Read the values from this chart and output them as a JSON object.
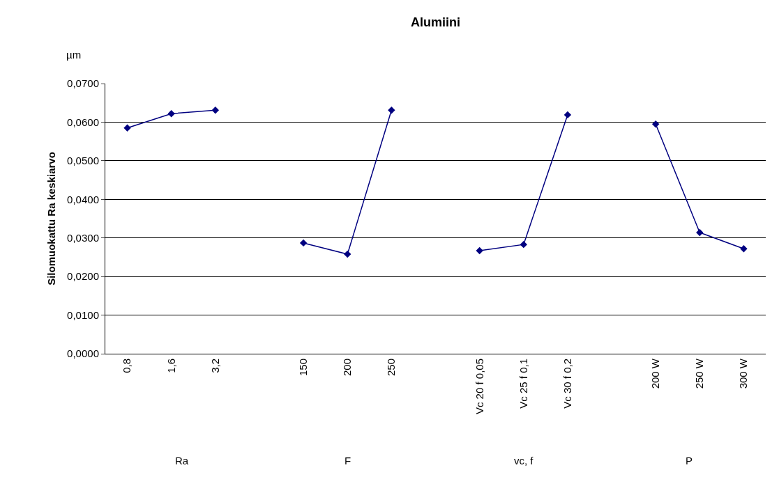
{
  "chart_data": {
    "type": "line",
    "title": "Alumiini",
    "ylabel": "Silomuokattu Ra keskiarvo",
    "categories": [
      "0,8",
      "1,6",
      "3,2",
      null,
      "150",
      "200",
      "250",
      null,
      "Vc 20 f 0,05",
      "Vc 25 f 0,1",
      "Vc 30 f 0,2",
      null,
      "200 W",
      "250 W",
      "300 W"
    ],
    "series": [
      {
        "color": "#000080",
        "values": [
          0.0585,
          0.0622,
          0.0631,
          null,
          0.0287,
          0.0258,
          0.0631,
          null,
          0.0267,
          0.0283,
          0.0619,
          null,
          0.0595,
          0.0314,
          0.0272
        ]
      }
    ],
    "ylim": [
      0,
      0.07
    ],
    "yticks": [
      {
        "value": 0,
        "label": "0,0000"
      },
      {
        "value": 0.01,
        "label": "0,0100"
      },
      {
        "value": 0.02,
        "label": "0,0200"
      },
      {
        "value": 0.03,
        "label": "0,0300"
      },
      {
        "value": 0.04,
        "label": "0,0400"
      },
      {
        "value": 0.05,
        "label": "0,0500"
      },
      {
        "value": 0.06,
        "label": "0,0600"
      },
      {
        "value": 0.07,
        "label": "0,0700"
      }
    ],
    "grid": "y",
    "marker": "diamond",
    "line_style": "solid",
    "annotations": [
      "µm",
      "Ra",
      "F",
      "vc, f",
      "P"
    ]
  }
}
